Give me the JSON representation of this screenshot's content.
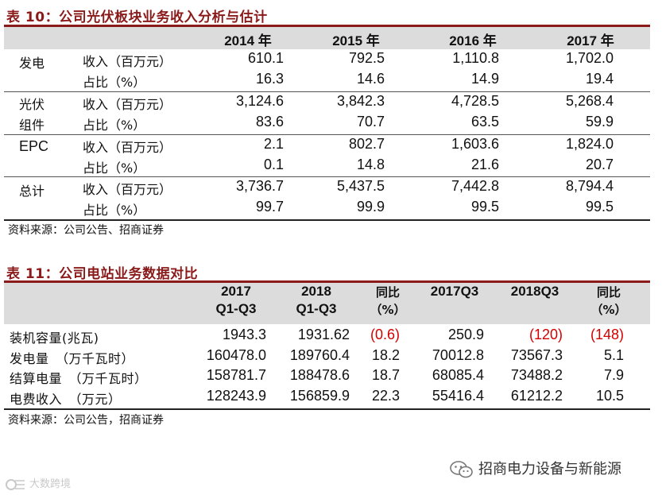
{
  "table10": {
    "title": "表 10：公司光伏板块业务收入分析与估计",
    "years": [
      "2014 年",
      "2015 年",
      "2016 年",
      "2017 年"
    ],
    "groups": [
      {
        "name_lines": [
          "发电"
        ],
        "rows": [
          {
            "label": "收入（百万元）",
            "values": [
              "610.1",
              "792.5",
              "1,110.8",
              "1,702.0"
            ]
          },
          {
            "label": "占比（%）",
            "values": [
              "16.3",
              "14.6",
              "14.9",
              "19.4"
            ]
          }
        ]
      },
      {
        "name_lines": [
          "光伏",
          "组件"
        ],
        "rows": [
          {
            "label": "收入（百万元）",
            "values": [
              "3,124.6",
              "3,842.3",
              "4,728.5",
              "5,268.4"
            ]
          },
          {
            "label": "占比（%）",
            "values": [
              "83.6",
              "70.7",
              "63.5",
              "59.9"
            ]
          }
        ]
      },
      {
        "name_lines": [
          "EPC"
        ],
        "rows": [
          {
            "label": "收入（百万元）",
            "values": [
              "2.1",
              "802.7",
              "1,603.6",
              "1,824.0"
            ]
          },
          {
            "label": "占比（%）",
            "values": [
              "0.1",
              "14.8",
              "21.6",
              "20.7"
            ]
          }
        ]
      },
      {
        "name_lines": [
          "总计"
        ],
        "rows": [
          {
            "label": "收入（百万元）",
            "values": [
              "3,736.7",
              "5,437.5",
              "7,442.8",
              "8,794.4"
            ]
          },
          {
            "label": "占比（%）",
            "values": [
              "99.7",
              "99.9",
              "99.5",
              "99.5"
            ]
          }
        ]
      }
    ],
    "source": "资料来源：公司公告、招商证券"
  },
  "table11": {
    "title": "表 11：公司电站业务数据对比",
    "headers": [
      [
        "2017",
        "Q1-Q3"
      ],
      [
        "2018",
        "Q1-Q3"
      ],
      [
        "同比",
        "（%）"
      ],
      [
        "2017Q3"
      ],
      [
        "2018Q3"
      ],
      [
        "同比",
        "（%）"
      ]
    ],
    "rows": [
      {
        "label": "装机容量(兆瓦)",
        "values": [
          "1943.3",
          "1931.62",
          "(0.6)",
          "250.9",
          "(120)",
          "(148)"
        ],
        "red": [
          false,
          false,
          true,
          false,
          true,
          true
        ]
      },
      {
        "label": "发电量　（万千瓦时）",
        "values": [
          "160478.0",
          "189760.4",
          "18.2",
          "70012.8",
          "73567.3",
          "5.1"
        ],
        "red": [
          false,
          false,
          false,
          false,
          false,
          false
        ]
      },
      {
        "label": "结算电量　（万千瓦时）",
        "values": [
          "158781.7",
          "188478.6",
          "18.7",
          "68085.4",
          "73488.2",
          "7.9"
        ],
        "red": [
          false,
          false,
          false,
          false,
          false,
          false
        ]
      },
      {
        "label": "电费收入　（万元）",
        "values": [
          "128243.9",
          "156859.9",
          "22.3",
          "55416.4",
          "61212.2",
          "10.5"
        ],
        "red": [
          false,
          false,
          false,
          false,
          false,
          false
        ]
      }
    ],
    "source": "资料来源：公司公告，招商证券"
  },
  "watermarks": {
    "wechat": "招商电力设备与新能源",
    "bottom_left": "大数跨境"
  },
  "colors": {
    "title": "#8b1a1a",
    "header_bg": "#dcdcdc",
    "negative": "#d40000"
  }
}
